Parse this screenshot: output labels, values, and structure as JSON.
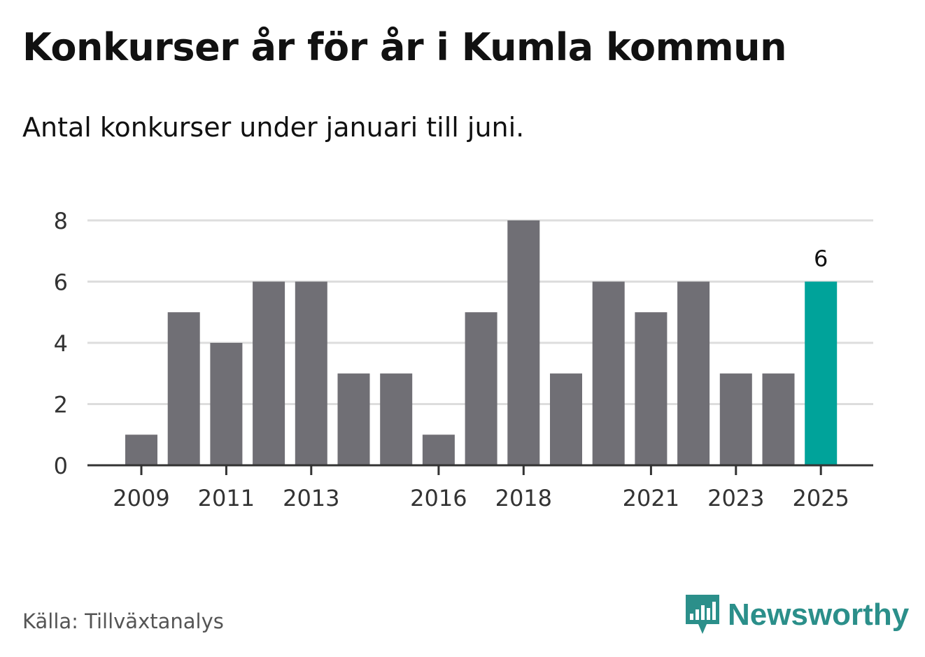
{
  "title": "Konkurser år för år i Kumla kommun",
  "subtitle": "Antal konkurser under januari till juni.",
  "source": "Källa: Tillväxtanalys",
  "brand": {
    "name": "Newsworthy",
    "logo_icon": "newsworthy-bar-chart-bubble-icon",
    "color": "#2b8f8a"
  },
  "colors": {
    "bar": "#706f75",
    "highlight": "#00a39a",
    "grid": "#dddddd",
    "axis": "#333333"
  },
  "chart_data": {
    "type": "bar",
    "categories": [
      "2009",
      "2010",
      "2011",
      "2012",
      "2013",
      "2014",
      "2015",
      "2016",
      "2017",
      "2018",
      "2019",
      "2020",
      "2021",
      "2022",
      "2023",
      "2024",
      "2025"
    ],
    "values": [
      1,
      5,
      4,
      6,
      6,
      3,
      3,
      1,
      5,
      8,
      3,
      6,
      5,
      6,
      3,
      3,
      6
    ],
    "x_tick_labels": [
      "2009",
      "2011",
      "2013",
      "2016",
      "2018",
      "2021",
      "2023",
      "2025"
    ],
    "y_ticks": [
      0,
      2,
      4,
      6,
      8
    ],
    "ylim": [
      0,
      8
    ],
    "highlight_category": "2025",
    "data_labels": [
      {
        "category": "2025",
        "text": "6"
      }
    ],
    "grid": true,
    "xlabel": "",
    "ylabel": ""
  }
}
